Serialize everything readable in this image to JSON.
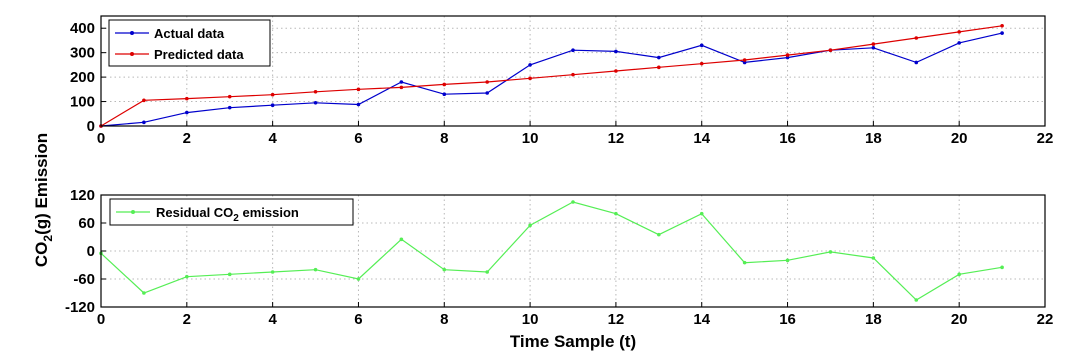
{
  "chart_data": [
    {
      "type": "line",
      "xlim": [
        0,
        22
      ],
      "ylim": [
        0,
        450
      ],
      "xticks": [
        0,
        2,
        4,
        6,
        8,
        10,
        12,
        14,
        16,
        18,
        20,
        22
      ],
      "yticks": [
        0,
        100,
        200,
        300,
        400
      ],
      "grid": true,
      "legend_position": "top-left",
      "series": [
        {
          "name": "Actual data",
          "color": "#0000cc",
          "x": [
            0,
            1,
            2,
            3,
            4,
            5,
            6,
            7,
            8,
            9,
            10,
            11,
            12,
            13,
            14,
            15,
            16,
            17,
            18,
            19,
            20,
            21
          ],
          "y": [
            0,
            15,
            55,
            75,
            85,
            95,
            88,
            180,
            130,
            135,
            250,
            310,
            305,
            280,
            330,
            260,
            280,
            310,
            320,
            260,
            340,
            380
          ]
        },
        {
          "name": "Predicted data",
          "color": "#dd0000",
          "x": [
            0,
            1,
            2,
            3,
            4,
            5,
            6,
            7,
            8,
            9,
            10,
            11,
            12,
            13,
            14,
            15,
            16,
            17,
            18,
            19,
            20,
            21
          ],
          "y": [
            0,
            105,
            112,
            120,
            128,
            140,
            150,
            158,
            170,
            180,
            195,
            210,
            225,
            240,
            255,
            270,
            290,
            310,
            335,
            360,
            385,
            410
          ]
        }
      ]
    },
    {
      "type": "line",
      "xlim": [
        0,
        22
      ],
      "ylim": [
        -120,
        120
      ],
      "xticks": [
        0,
        2,
        4,
        6,
        8,
        10,
        12,
        14,
        16,
        18,
        20,
        22
      ],
      "yticks": [
        -120,
        -60,
        0,
        60,
        120
      ],
      "grid": true,
      "legend_position": "top-left",
      "xlabel": "Time Sample (t)",
      "series": [
        {
          "name_prefix": "Residual CO",
          "name_sub": "2",
          "name_suffix": " emission",
          "color": "#55ee55",
          "x": [
            0,
            1,
            2,
            3,
            4,
            5,
            6,
            7,
            8,
            9,
            10,
            11,
            12,
            13,
            14,
            15,
            16,
            17,
            18,
            19,
            20,
            21
          ],
          "y": [
            -5,
            -90,
            -55,
            -50,
            -45,
            -40,
            -60,
            25,
            -40,
            -45,
            55,
            105,
            80,
            35,
            80,
            -25,
            -20,
            -2,
            -15,
            -105,
            -50,
            -35
          ]
        }
      ]
    }
  ],
  "ylabel": {
    "prefix": "CO",
    "sub": "2",
    "suffix": "(g) Emission"
  }
}
